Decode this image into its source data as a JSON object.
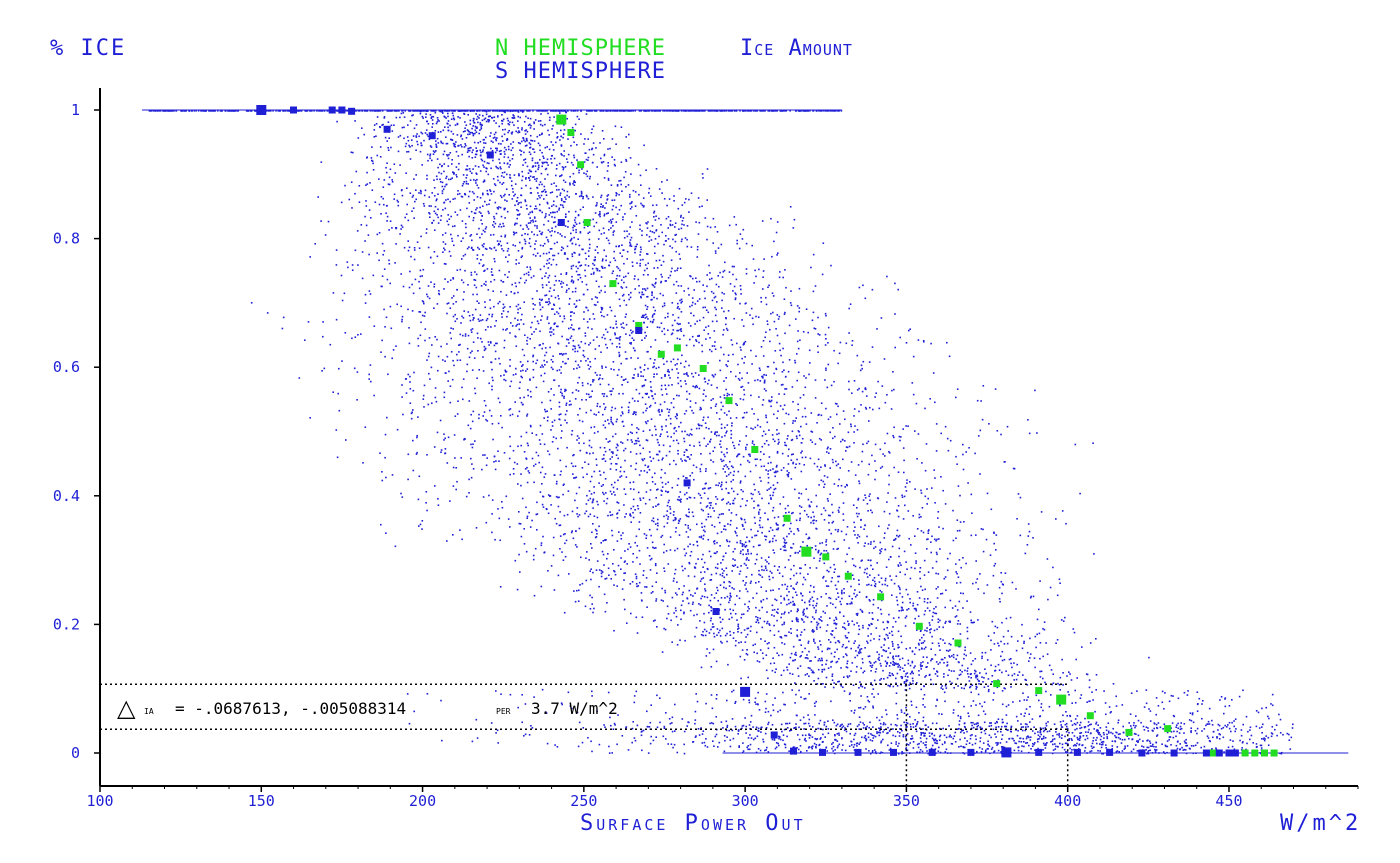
{
  "chart_data": {
    "type": "scatter",
    "title_n": "N HEMISPHERE",
    "title_s": "S HEMISPHERE",
    "title_rest": "Ice Amount",
    "ylabel": "% ICE",
    "xlabel": "Surface Power Out",
    "xunit": "W/m^2",
    "xlim": [
      100,
      490
    ],
    "ylim": [
      -0.05,
      1.05
    ],
    "xticks": [
      100,
      150,
      200,
      250,
      300,
      350,
      400,
      450
    ],
    "xtick_labels": [
      "100",
      "150",
      "200",
      "250",
      "300",
      "350",
      "400",
      "450"
    ],
    "yticks": [
      0,
      0.2,
      0.4,
      0.6,
      0.8,
      1
    ],
    "ytick_labels": [
      "0",
      "0.2",
      "0.4",
      "0.6",
      "0.8",
      "1"
    ],
    "grid": false,
    "annotation": {
      "symbol": "△",
      "subscript": "ia",
      "text": "= -.0687613, -.005088314",
      "per": "per",
      "tail": "3.7 W/m^2"
    },
    "reference_lines": {
      "y_levels": [
        0.107,
        0.037
      ],
      "x_levels": [
        350,
        400
      ]
    },
    "colors": {
      "north": "#22dd22",
      "south": "#1f1fd6",
      "cloud": "#1f1fd6",
      "axis": "#000000"
    },
    "series": [
      {
        "name": "N HEMISPHERE",
        "color": "#22dd22",
        "x": [
          243,
          246,
          249,
          251,
          259,
          267,
          274,
          279,
          287,
          295,
          303,
          313,
          319,
          325,
          332,
          342,
          354,
          366,
          378,
          391,
          398,
          407,
          419,
          431,
          445,
          450,
          455,
          458,
          461,
          464
        ],
        "y": [
          0.985,
          0.965,
          0.915,
          0.825,
          0.73,
          0.665,
          0.62,
          0.63,
          0.598,
          0.548,
          0.472,
          0.365,
          0.313,
          0.305,
          0.275,
          0.243,
          0.197,
          0.171,
          0.108,
          0.097,
          0.083,
          0.058,
          0.032,
          0.038,
          0.0,
          0.0,
          0.0,
          0.0,
          0.0,
          0.0
        ]
      },
      {
        "name": "S HEMISPHERE",
        "color": "#1f1fd6",
        "x": [
          150,
          160,
          172,
          175,
          178,
          189,
          203,
          221,
          243,
          267,
          282,
          291,
          300,
          309,
          315,
          324,
          335,
          346,
          358,
          370,
          381,
          391,
          403,
          413,
          423,
          433,
          443,
          447,
          450,
          452
        ],
        "y": [
          1.0,
          1.0,
          1.0,
          1.0,
          0.998,
          0.97,
          0.96,
          0.93,
          0.825,
          0.657,
          0.42,
          0.22,
          0.095,
          0.028,
          0.003,
          0.001,
          0.001,
          0.001,
          0.001,
          0.001,
          0.001,
          0.001,
          0.001,
          0.001,
          0.0,
          0.0,
          0.0,
          0.0,
          0.0,
          0.0
        ]
      }
    ]
  }
}
